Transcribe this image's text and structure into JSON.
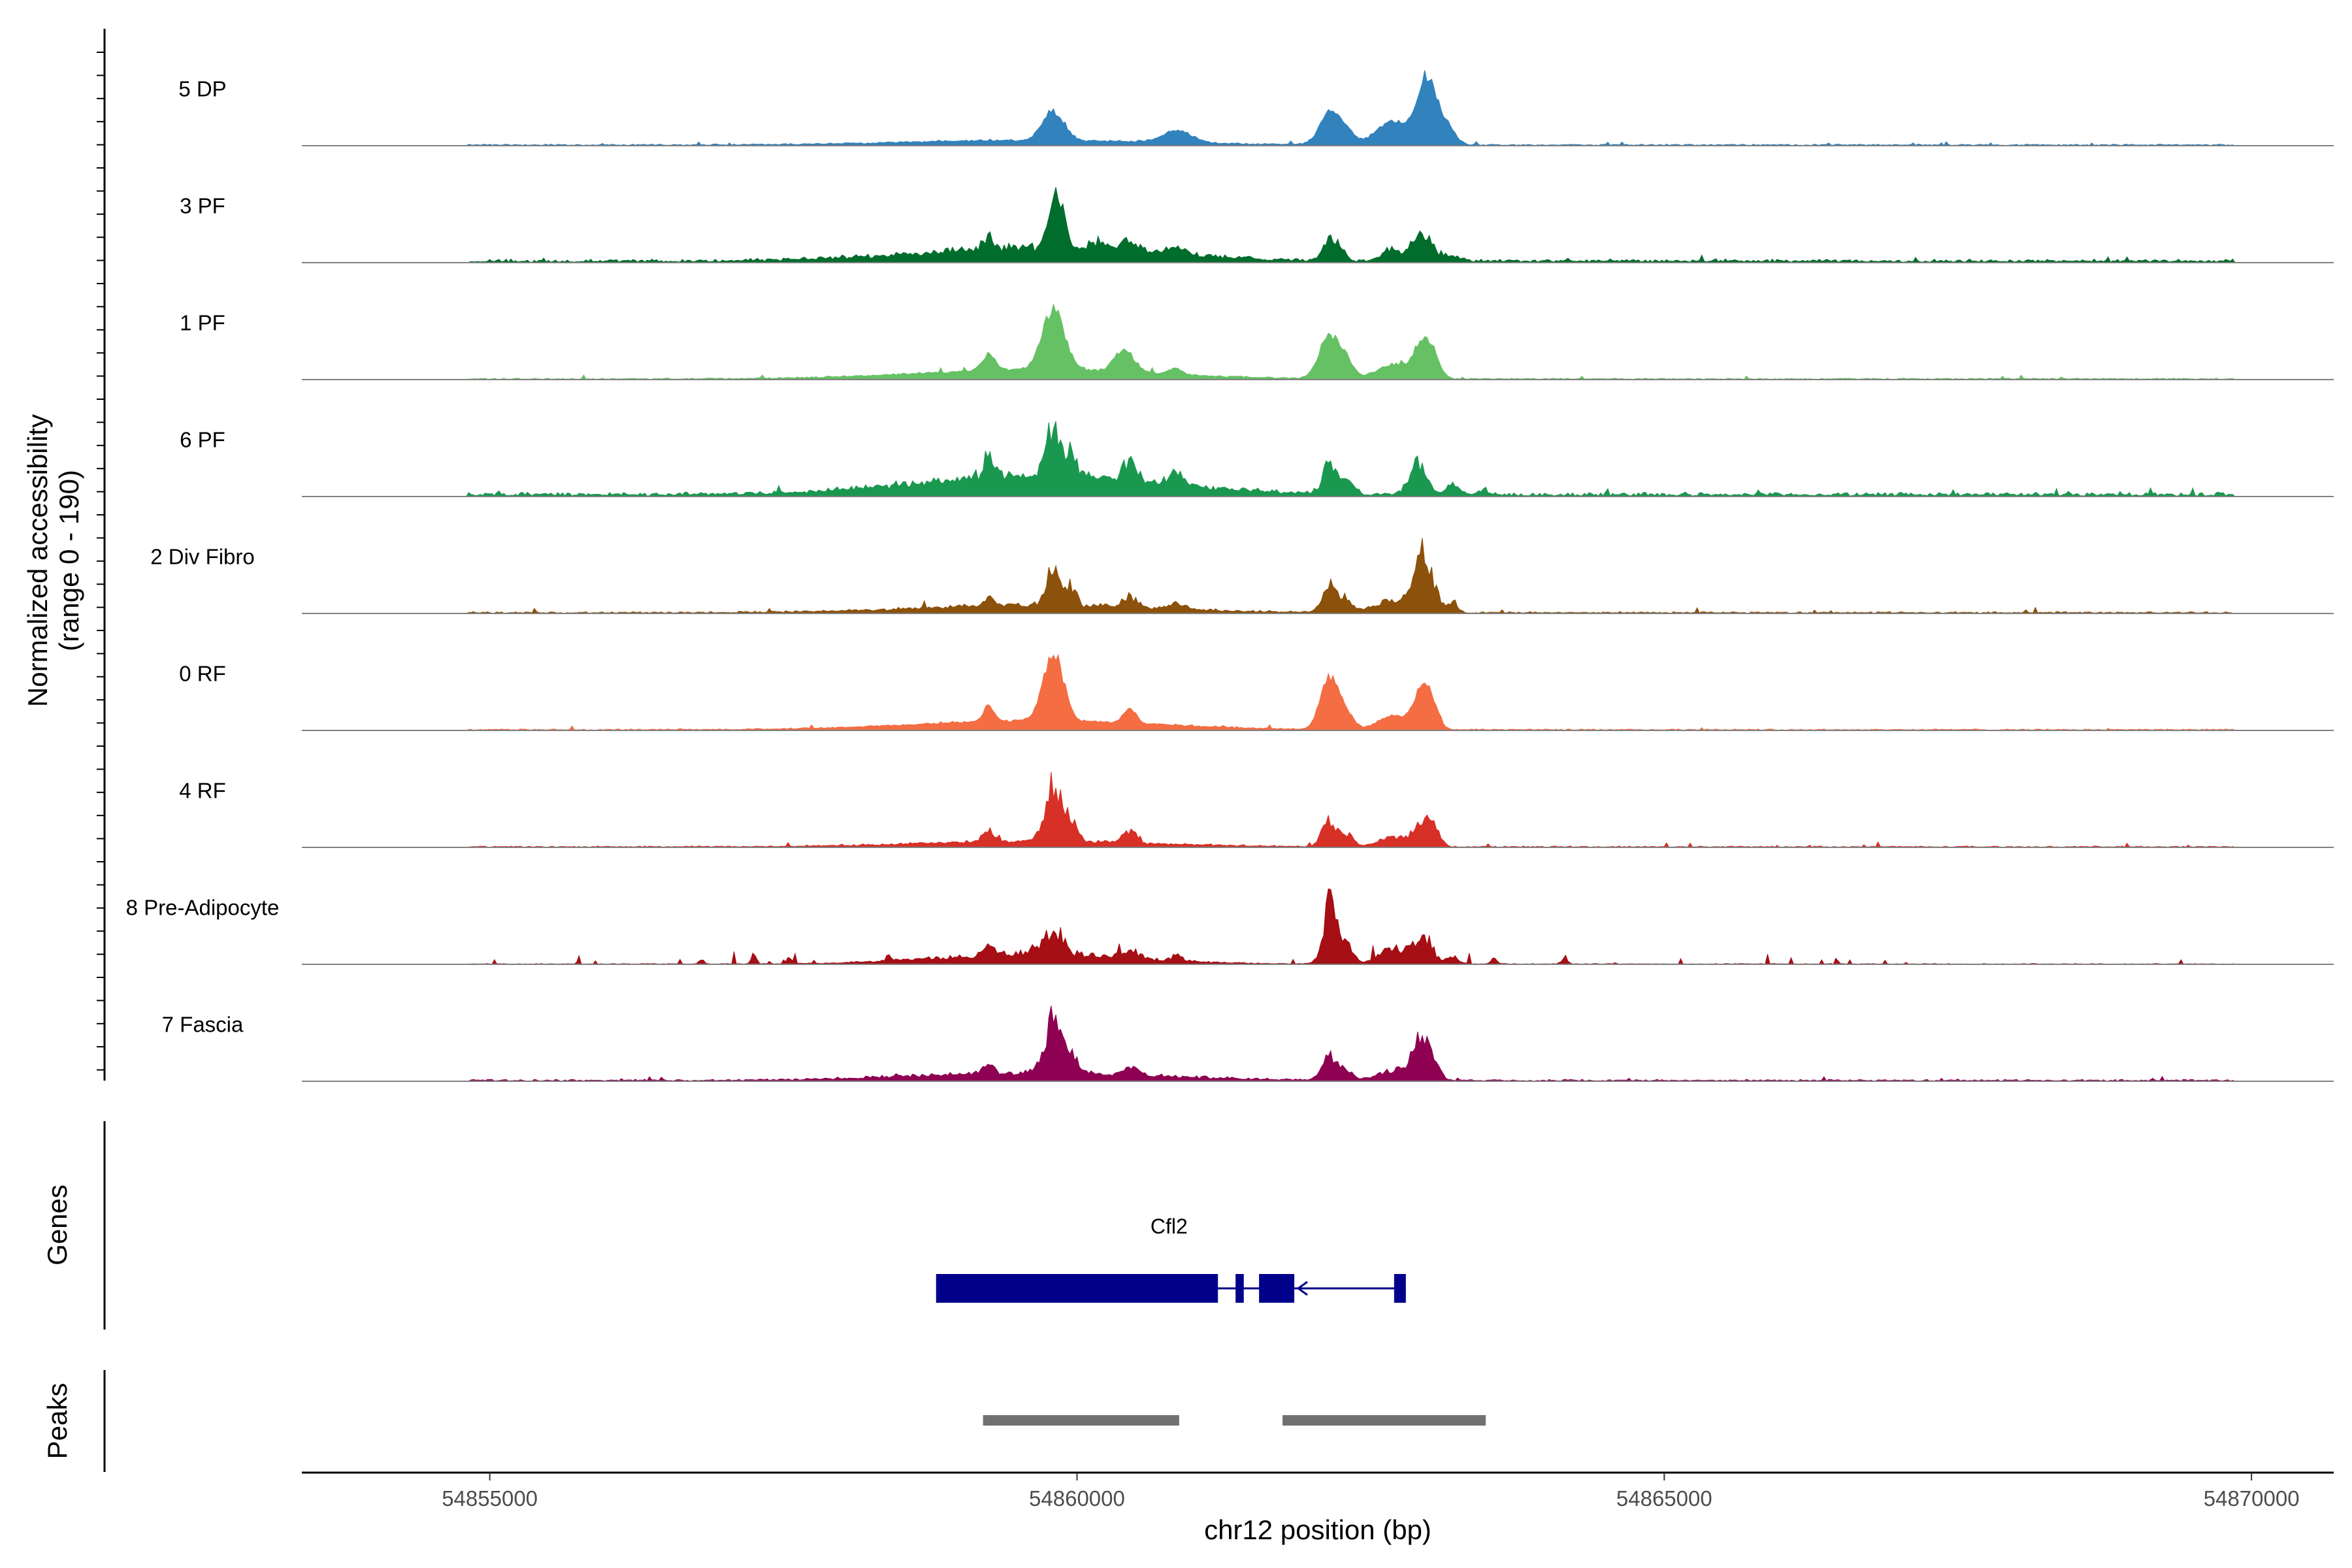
{
  "chart_data": {
    "type": "area",
    "title": "",
    "ylabel_line1": "Normalized accessibility",
    "ylabel_line2": "(range 0 - 190)",
    "xlabel": "chr12 position (bp)",
    "xlim": [
      54853400,
      54870700
    ],
    "ylim": [
      0,
      190
    ],
    "x_ticks": [
      54855000,
      54860000,
      54865000,
      54870000
    ],
    "x_tick_labels": [
      "54855000",
      "54860000",
      "54865000",
      "54870000"
    ],
    "tracks": [
      {
        "name": "5 DP",
        "color": "#3182bd",
        "baseline": 1.5,
        "noise": 0.9,
        "profile": "smooth",
        "peaks": [
          [
            54859650,
            0.5,
            1050
          ],
          [
            54859800,
            3.2,
            90
          ],
          [
            54860850,
            1.4,
            120
          ],
          [
            54862150,
            3.5,
            85
          ],
          [
            54862300,
            1.2,
            65
          ],
          [
            54862700,
            2.5,
            150
          ],
          [
            54862950,
            2.8,
            70
          ],
          [
            54863000,
            4.6,
            80
          ],
          [
            54863150,
            1.8,
            70
          ]
        ]
      },
      {
        "name": "3 PF",
        "color": "#006d2c",
        "baseline": 2.0,
        "noise": 1.2,
        "profile": "jagged",
        "peaks": [
          [
            54859650,
            1.3,
            1000
          ],
          [
            54859250,
            1.2,
            45
          ],
          [
            54859800,
            3.5,
            45
          ],
          [
            54859870,
            2.8,
            40
          ],
          [
            54860200,
            0.7,
            100
          ],
          [
            54860450,
            1.0,
            70
          ],
          [
            54860850,
            0.8,
            80
          ],
          [
            54862150,
            1.8,
            55
          ],
          [
            54862250,
            1.0,
            45
          ],
          [
            54862650,
            1.0,
            70
          ],
          [
            54862930,
            2.6,
            95
          ],
          [
            54863200,
            0.5,
            70
          ]
        ]
      },
      {
        "name": "1 PF",
        "color": "#66c164",
        "baseline": 1.2,
        "noise": 0.9,
        "profile": "smooth",
        "peaks": [
          [
            54859650,
            0.9,
            1000
          ],
          [
            54859250,
            1.7,
            55
          ],
          [
            54859800,
            6.0,
            95
          ],
          [
            54860400,
            2.2,
            85
          ],
          [
            54860840,
            0.6,
            50
          ],
          [
            54862150,
            4.3,
            85
          ],
          [
            54862300,
            1.4,
            60
          ],
          [
            54862700,
            1.4,
            140
          ],
          [
            54862950,
            3.6,
            75
          ],
          [
            54863050,
            1.2,
            55
          ]
        ]
      },
      {
        "name": "6 PF",
        "color": "#1a9850",
        "baseline": 1.8,
        "noise": 1.1,
        "profile": "jagged",
        "peaks": [
          [
            54859650,
            1.2,
            1050
          ],
          [
            54859250,
            1.4,
            45
          ],
          [
            54859800,
            3.2,
            55
          ],
          [
            54859950,
            2.2,
            40
          ],
          [
            54860450,
            1.2,
            60
          ],
          [
            54860850,
            0.8,
            60
          ],
          [
            54862150,
            2.0,
            55
          ],
          [
            54862300,
            1.0,
            50
          ],
          [
            54862900,
            2.0,
            70
          ],
          [
            54863200,
            0.6,
            60
          ],
          [
            54863450,
            0.3,
            30
          ]
        ]
      },
      {
        "name": "2 Div Fibro",
        "color": "#8c510a",
        "baseline": 1.2,
        "noise": 0.9,
        "profile": "jagged",
        "peaks": [
          [
            54859650,
            0.6,
            1000
          ],
          [
            54859250,
            0.8,
            45
          ],
          [
            54859800,
            3.2,
            55
          ],
          [
            54859950,
            1.5,
            40
          ],
          [
            54860450,
            0.8,
            60
          ],
          [
            54860850,
            0.5,
            60
          ],
          [
            54862150,
            2.2,
            60
          ],
          [
            54862300,
            1.0,
            50
          ],
          [
            54862700,
            1.0,
            150
          ],
          [
            54862950,
            4.5,
            80
          ],
          [
            54863200,
            0.8,
            40
          ]
        ]
      },
      {
        "name": "0 RF",
        "color": "#f46d43",
        "baseline": 1.2,
        "noise": 0.8,
        "profile": "smooth",
        "peaks": [
          [
            54859650,
            0.8,
            1000
          ],
          [
            54859250,
            1.3,
            45
          ],
          [
            54859800,
            5.8,
            85
          ],
          [
            54860450,
            1.3,
            50
          ],
          [
            54862150,
            4.5,
            75
          ],
          [
            54862300,
            1.2,
            60
          ],
          [
            54862700,
            1.2,
            130
          ],
          [
            54862950,
            3.8,
            70
          ],
          [
            54863050,
            1.0,
            50
          ]
        ]
      },
      {
        "name": "4 RF",
        "color": "#d73027",
        "baseline": 1.2,
        "noise": 0.9,
        "profile": "jagged",
        "peaks": [
          [
            54859650,
            0.6,
            1000
          ],
          [
            54859250,
            1.3,
            45
          ],
          [
            54859800,
            6.3,
            70
          ],
          [
            54859950,
            2.2,
            50
          ],
          [
            54860450,
            1.4,
            50
          ],
          [
            54862150,
            3.0,
            60
          ],
          [
            54862300,
            1.3,
            50
          ],
          [
            54862700,
            1.0,
            130
          ],
          [
            54862950,
            2.7,
            75
          ],
          [
            54863050,
            1.0,
            50
          ]
        ]
      },
      {
        "name": "8 Pre-Adipocyte",
        "color": "#a50f15",
        "baseline": 0.6,
        "noise": 0.7,
        "profile": "blocky",
        "peaks": [
          [
            54859650,
            0.8,
            800
          ],
          [
            54859250,
            0.6,
            45
          ],
          [
            54859800,
            1.6,
            80
          ],
          [
            54860450,
            0.7,
            60
          ],
          [
            54860850,
            0.4,
            40
          ],
          [
            54862150,
            4.5,
            55
          ],
          [
            54862300,
            1.4,
            50
          ],
          [
            54862700,
            1.2,
            120
          ],
          [
            54862950,
            2.0,
            75
          ],
          [
            54863200,
            0.6,
            50
          ],
          [
            54858400,
            0.4,
            25
          ],
          [
            54857250,
            0.7,
            20
          ],
          [
            54856800,
            0.4,
            20
          ],
          [
            54857550,
            0.4,
            20
          ],
          [
            54863550,
            0.4,
            25
          ],
          [
            54864150,
            0.4,
            25
          ]
        ]
      },
      {
        "name": "7 Fascia",
        "color": "#8e0152",
        "baseline": 1.4,
        "noise": 1.0,
        "profile": "jagged",
        "peaks": [
          [
            54859650,
            0.8,
            1000
          ],
          [
            54859250,
            0.8,
            45
          ],
          [
            54859800,
            5.0,
            75
          ],
          [
            54859950,
            1.8,
            50
          ],
          [
            54860450,
            0.8,
            60
          ],
          [
            54862150,
            2.4,
            60
          ],
          [
            54862300,
            1.0,
            50
          ],
          [
            54862700,
            1.0,
            140
          ],
          [
            54862930,
            3.8,
            75
          ],
          [
            54863050,
            1.2,
            50
          ]
        ]
      }
    ],
    "genes": [
      {
        "name": "Cfl2",
        "strand": "-",
        "start": 54858800,
        "end": 54862800,
        "exons": [
          [
            54858800,
            54861200
          ],
          [
            54861350,
            54861420
          ],
          [
            54861550,
            54861850
          ],
          [
            54862700,
            54862800
          ]
        ]
      }
    ],
    "peaks_regions": [
      [
        54859200,
        54860870
      ],
      [
        54861750,
        54863480
      ]
    ],
    "genes_label": "Genes",
    "peaks_label": "Peaks"
  }
}
